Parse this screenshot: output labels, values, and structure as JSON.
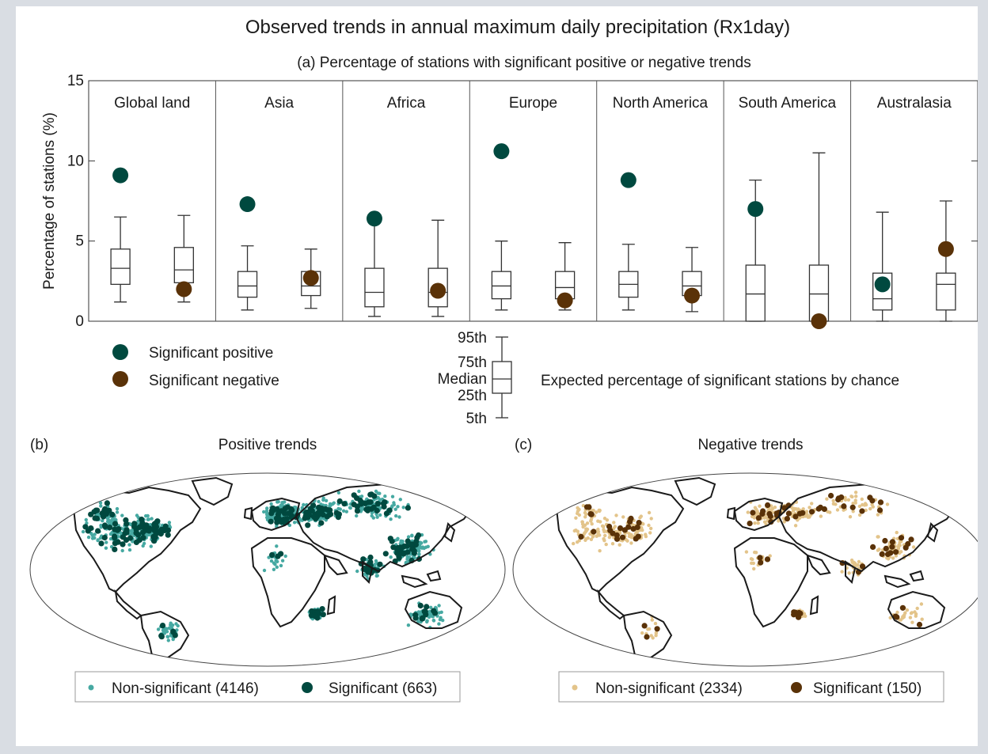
{
  "figure": {
    "title": "Observed trends in annual maximum daily precipitation (Rx1day)"
  },
  "colors": {
    "positive_sig": "#00493f",
    "negative_sig": "#5a3208",
    "positive_nonsig": "#46a9a2",
    "negative_nonsig": "#e3c48a",
    "axis": "#333333",
    "land_outline": "#1a1a1a"
  },
  "chart_data": [
    {
      "type": "boxplot",
      "panel": "(a)",
      "subtitle": "(a) Percentage of stations with significant positive or negative trends",
      "ylabel": "Percentage of stations (%)",
      "ylim": [
        0,
        15
      ],
      "yticks": [
        0,
        5,
        10,
        15
      ],
      "grid": false,
      "categories": [
        "Global land",
        "Asia",
        "Africa",
        "Europe",
        "North America",
        "South America",
        "Australasia"
      ],
      "series": [
        {
          "name": "Significant positive",
          "color": "#00493f",
          "observed": [
            9.1,
            7.3,
            6.4,
            10.6,
            8.8,
            7.0,
            2.3
          ],
          "expected": {
            "p5": [
              1.2,
              0.7,
              0.3,
              0.7,
              0.7,
              0.0,
              0.0
            ],
            "p25": [
              2.3,
              1.5,
              0.9,
              1.4,
              1.5,
              0.0,
              0.7
            ],
            "median": [
              3.3,
              2.2,
              1.8,
              2.2,
              2.3,
              1.7,
              1.4
            ],
            "p75": [
              4.5,
              3.1,
              3.3,
              3.1,
              3.1,
              3.5,
              3.0
            ],
            "p95": [
              6.5,
              4.7,
              6.3,
              5.0,
              4.8,
              8.8,
              6.8
            ]
          }
        },
        {
          "name": "Significant negative",
          "color": "#5a3208",
          "observed": [
            2.0,
            2.7,
            1.9,
            1.3,
            1.6,
            0.0,
            4.5
          ],
          "expected": {
            "p5": [
              1.2,
              0.8,
              0.3,
              0.7,
              0.6,
              0.0,
              0.0
            ],
            "p25": [
              2.4,
              1.6,
              0.9,
              1.4,
              1.6,
              0.0,
              0.7
            ],
            "median": [
              3.2,
              2.2,
              1.8,
              2.1,
              2.2,
              1.7,
              2.3
            ],
            "p75": [
              4.6,
              3.1,
              3.3,
              3.1,
              3.1,
              3.5,
              3.0
            ],
            "p95": [
              6.6,
              4.5,
              6.3,
              4.9,
              4.6,
              10.5,
              7.5
            ]
          }
        }
      ],
      "legend": {
        "positive_label": "Significant positive",
        "negative_label": "Significant negative",
        "expected_caption": "Expected percentage of significant stations by chance",
        "percentile_labels": [
          "95th",
          "75th",
          "Median",
          "25th",
          "5th"
        ]
      }
    },
    {
      "type": "map",
      "panel": "(b)",
      "title": "Positive trends",
      "series": [
        {
          "name": "Non-significant",
          "count": 4146,
          "color": "#46a9a2"
        },
        {
          "name": "Significant",
          "count": 663,
          "color": "#00493f"
        }
      ],
      "legend_labels": [
        "Non-significant (4146)",
        "Significant (663)"
      ]
    },
    {
      "type": "map",
      "panel": "(c)",
      "title": "Negative trends",
      "series": [
        {
          "name": "Non-significant",
          "count": 2334,
          "color": "#e3c48a"
        },
        {
          "name": "Significant",
          "count": 150,
          "color": "#5a3208"
        }
      ],
      "legend_labels": [
        "Non-significant (2334)",
        "Significant (150)"
      ]
    }
  ]
}
